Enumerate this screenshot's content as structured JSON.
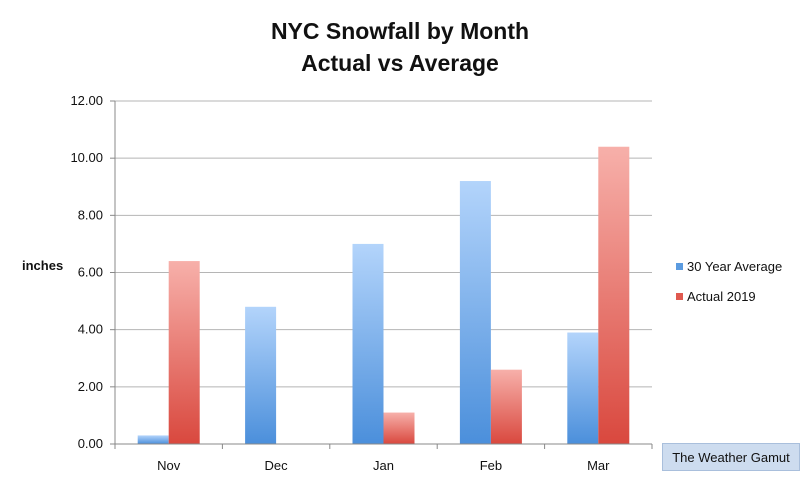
{
  "chart_data": {
    "type": "bar",
    "title": "NYC Snowfall by Month",
    "subtitle": "Actual vs Average",
    "ylabel": "inches",
    "xlabel": "",
    "categories": [
      "Nov",
      "Dec",
      "Jan",
      "Feb",
      "Mar"
    ],
    "series": [
      {
        "name": "30 Year Average",
        "values": [
          0.3,
          4.8,
          7.0,
          9.2,
          3.9
        ],
        "color": "#5b9be0"
      },
      {
        "name": "Actual 2019",
        "values": [
          6.4,
          0.0,
          1.1,
          2.6,
          10.4
        ],
        "color": "#e0594f"
      }
    ],
    "ylim": [
      0,
      12
    ],
    "yticks": [
      "0.00",
      "2.00",
      "4.00",
      "6.00",
      "8.00",
      "10.00",
      "12.00"
    ],
    "grid": true,
    "legend_position": "right"
  },
  "watermark": "The Weather Gamut"
}
